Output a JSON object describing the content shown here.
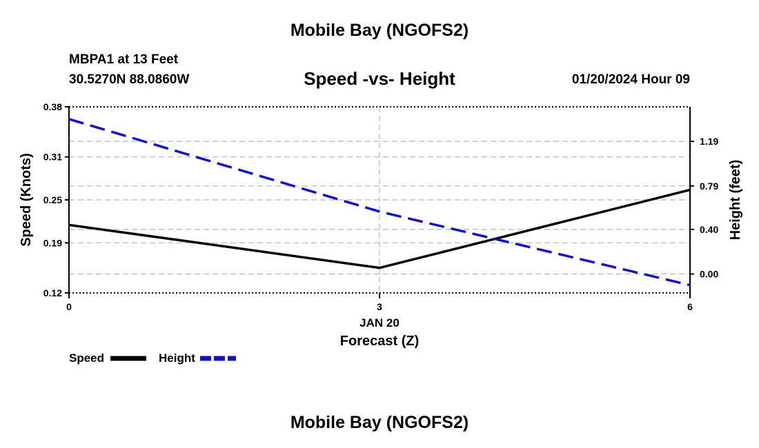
{
  "header": {
    "title": "Mobile Bay (NGOFS2)",
    "station": "MBPA1 at 13 Feet",
    "coords": "30.5270N  88.0860W",
    "subtitle": "Speed -vs- Height",
    "timestamp": "01/20/2024 Hour 09"
  },
  "footer": {
    "title": "Mobile Bay (NGOFS2)"
  },
  "chart_data": {
    "type": "line",
    "title": "Speed -vs- Height",
    "xlabel": "Forecast (Z)",
    "date_label": "JAN 20",
    "ylabel": "Speed (Knots)",
    "y2label": "Height (feet)",
    "x": [
      0,
      3,
      6
    ],
    "xticks": [
      0,
      3,
      6
    ],
    "xtick_labels": [
      "0",
      "3",
      "6"
    ],
    "xlim": [
      0,
      6
    ],
    "ylim": [
      0.12,
      0.38
    ],
    "yticks": [
      0.12,
      0.19,
      0.25,
      0.31,
      0.38
    ],
    "ytick_labels": [
      "0.12",
      "0.19",
      "0.25",
      "0.31",
      "0.38"
    ],
    "y2lim": [
      -0.17,
      1.5
    ],
    "y2ticks": [
      0.0,
      0.4,
      0.79,
      1.19
    ],
    "y2tick_labels": [
      "0.00",
      "0.40",
      "0.79",
      "1.19"
    ],
    "grid": true,
    "legend_position": "bottom-left",
    "series": [
      {
        "name": "Speed",
        "axis": "left",
        "color": "#000000",
        "dash": "solid",
        "values": [
          0.215,
          0.155,
          0.264
        ]
      },
      {
        "name": "Height",
        "axis": "right",
        "color": "#1010cc",
        "dash": "dashed",
        "values": [
          1.39,
          0.56,
          -0.1
        ]
      }
    ]
  }
}
